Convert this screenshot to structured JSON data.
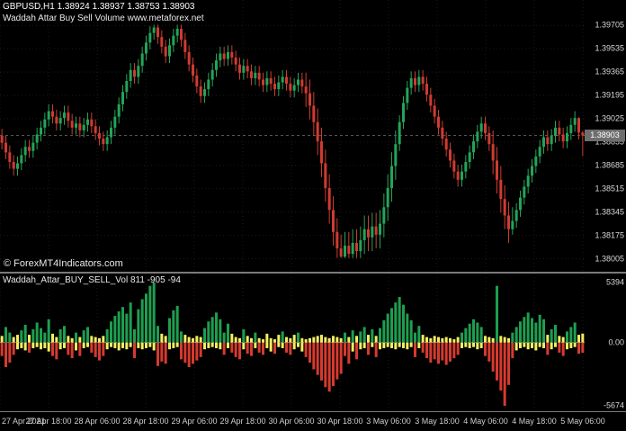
{
  "window": {
    "bg": "#000000"
  },
  "header": {
    "symbol_line": "GBPUSD,H1 1.38924 1.38937 1.38753 1.38903",
    "subtitle_line": "Waddah Attar Buy Sell Volume www.metaforex.net"
  },
  "watermark": "© ForexMT4Indicators.com",
  "indicator_panel": {
    "label": "Waddah_Attar_BUY_SELL_Vol 811 -905 -94",
    "axis_labels": [
      {
        "text": "5394",
        "value": 5394
      },
      {
        "text": "0.00",
        "value": 0
      },
      {
        "text": "-5674",
        "value": -5674
      }
    ]
  },
  "price_axis": {
    "labels": [
      "1.39705",
      "1.39535",
      "1.39365",
      "1.39195",
      "1.39025",
      "1.38855",
      "1.38685",
      "1.38515",
      "1.38345",
      "1.38175",
      "1.38005"
    ],
    "current": "1.38903"
  },
  "time_axis": {
    "labels": [
      "27 Apr 2021",
      "27 Apr 18:00",
      "28 Apr 06:00",
      "28 Apr 18:00",
      "29 Apr 06:00",
      "29 Apr 18:00",
      "30 Apr 06:00",
      "30 Apr 18:00",
      "3 May 06:00",
      "3 May 18:00",
      "4 May 06:00",
      "4 May 18:00",
      "5 May 06:00"
    ]
  },
  "colors": {
    "background": "#000000",
    "bull": "#23a459",
    "bear": "#cf3b30",
    "volume_up": "#1e9e50",
    "volume_down": "#d63a2f",
    "volume_small": "#f2ee62",
    "axis_text": "#d9d9d9",
    "grid": "rgba(255,255,255,0.10)",
    "separator": "#7a7a7a",
    "zero_line": "#a0a0a0",
    "bid_line": "#8a8a8a",
    "badge_bg": "#6e6e6e",
    "badge_text": "#ffffff"
  },
  "chart_data": {
    "type": "candlestick",
    "symbol": "GBPUSD",
    "timeframe": "H1",
    "title": "Waddah Attar Buy Sell Volume www.metaforex.net",
    "price_range": [
      1.3791,
      1.3989
    ],
    "ohlc": [
      [
        1.389,
        1.3895,
        1.388,
        1.3885
      ],
      [
        1.3885,
        1.389,
        1.3873,
        1.3878
      ],
      [
        1.3878,
        1.3883,
        1.3866,
        1.3871
      ],
      [
        1.3871,
        1.3876,
        1.3861,
        1.3866
      ],
      [
        1.3866,
        1.3875,
        1.3861,
        1.387
      ],
      [
        1.387,
        1.3881,
        1.3865,
        1.3876
      ],
      [
        1.3876,
        1.3887,
        1.3871,
        1.3882
      ],
      [
        1.3882,
        1.3887,
        1.3874,
        1.3879
      ],
      [
        1.3879,
        1.389,
        1.3874,
        1.3885
      ],
      [
        1.3885,
        1.3896,
        1.388,
        1.3891
      ],
      [
        1.3891,
        1.3901,
        1.3886,
        1.3896
      ],
      [
        1.3896,
        1.3907,
        1.3891,
        1.3902
      ],
      [
        1.3902,
        1.3913,
        1.3897,
        1.3908
      ],
      [
        1.3908,
        1.3913,
        1.3899,
        1.3904
      ],
      [
        1.3904,
        1.3909,
        1.3894,
        1.3899
      ],
      [
        1.3899,
        1.3908,
        1.3894,
        1.3903
      ],
      [
        1.3903,
        1.3912,
        1.3898,
        1.3907
      ],
      [
        1.3907,
        1.3912,
        1.3896,
        1.3901
      ],
      [
        1.3901,
        1.3906,
        1.3891,
        1.3896
      ],
      [
        1.3896,
        1.3904,
        1.3891,
        1.3899
      ],
      [
        1.3899,
        1.3904,
        1.3889,
        1.3894
      ],
      [
        1.3894,
        1.3903,
        1.3889,
        1.3898
      ],
      [
        1.3898,
        1.3907,
        1.3893,
        1.3902
      ],
      [
        1.3902,
        1.3907,
        1.3892,
        1.3897
      ],
      [
        1.3897,
        1.3902,
        1.3887,
        1.3892
      ],
      [
        1.3892,
        1.3897,
        1.3883,
        1.3888
      ],
      [
        1.3888,
        1.3893,
        1.3879,
        1.3884
      ],
      [
        1.3884,
        1.3894,
        1.3879,
        1.3889
      ],
      [
        1.3889,
        1.3901,
        1.3884,
        1.3896
      ],
      [
        1.3896,
        1.3909,
        1.3891,
        1.3904
      ],
      [
        1.3904,
        1.3918,
        1.3899,
        1.3913
      ],
      [
        1.3913,
        1.3927,
        1.3908,
        1.3922
      ],
      [
        1.3922,
        1.3935,
        1.3917,
        1.393
      ],
      [
        1.393,
        1.3943,
        1.3925,
        1.3938
      ],
      [
        1.3938,
        1.3943,
        1.3928,
        1.3933
      ],
      [
        1.3933,
        1.3946,
        1.3928,
        1.3941
      ],
      [
        1.3941,
        1.3955,
        1.3936,
        1.395
      ],
      [
        1.395,
        1.3963,
        1.3945,
        1.3958
      ],
      [
        1.3958,
        1.397,
        1.3953,
        1.3965
      ],
      [
        1.3965,
        1.3971,
        1.396,
        1.3969
      ],
      [
        1.3969,
        1.3971,
        1.3957,
        1.3962
      ],
      [
        1.3962,
        1.3967,
        1.395,
        1.3955
      ],
      [
        1.3955,
        1.396,
        1.3943,
        1.3948
      ],
      [
        1.3948,
        1.3961,
        1.3943,
        1.3956
      ],
      [
        1.3956,
        1.3968,
        1.3951,
        1.3963
      ],
      [
        1.3963,
        1.3971,
        1.3958,
        1.3968
      ],
      [
        1.3968,
        1.3971,
        1.3955,
        1.396
      ],
      [
        1.396,
        1.3965,
        1.3946,
        1.3951
      ],
      [
        1.3951,
        1.3956,
        1.3937,
        1.3942
      ],
      [
        1.3942,
        1.3947,
        1.3929,
        1.3934
      ],
      [
        1.3934,
        1.3939,
        1.3921,
        1.3926
      ],
      [
        1.3926,
        1.3931,
        1.3914,
        1.3919
      ],
      [
        1.3919,
        1.3929,
        1.3914,
        1.3924
      ],
      [
        1.3924,
        1.3936,
        1.3919,
        1.3931
      ],
      [
        1.3931,
        1.3943,
        1.3926,
        1.3938
      ],
      [
        1.3938,
        1.395,
        1.3933,
        1.3945
      ],
      [
        1.3945,
        1.3955,
        1.394,
        1.395
      ],
      [
        1.395,
        1.3955,
        1.3941,
        1.3946
      ],
      [
        1.3946,
        1.3956,
        1.3941,
        1.3951
      ],
      [
        1.3951,
        1.3956,
        1.3942,
        1.3947
      ],
      [
        1.3947,
        1.3952,
        1.3937,
        1.3942
      ],
      [
        1.3942,
        1.3947,
        1.3931,
        1.3936
      ],
      [
        1.3936,
        1.3946,
        1.3931,
        1.3941
      ],
      [
        1.3941,
        1.3946,
        1.3932,
        1.3937
      ],
      [
        1.3937,
        1.3942,
        1.3927,
        1.3932
      ],
      [
        1.3932,
        1.3941,
        1.3927,
        1.3936
      ],
      [
        1.3936,
        1.3941,
        1.3926,
        1.3931
      ],
      [
        1.3931,
        1.3936,
        1.3922,
        1.3927
      ],
      [
        1.3927,
        1.3937,
        1.3922,
        1.3932
      ],
      [
        1.3932,
        1.3937,
        1.3923,
        1.3928
      ],
      [
        1.3928,
        1.3933,
        1.3919,
        1.3924
      ],
      [
        1.3924,
        1.3934,
        1.3919,
        1.3929
      ],
      [
        1.3929,
        1.3938,
        1.3924,
        1.3933
      ],
      [
        1.3933,
        1.3938,
        1.3923,
        1.3928
      ],
      [
        1.3928,
        1.3933,
        1.3918,
        1.3923
      ],
      [
        1.3923,
        1.3932,
        1.3918,
        1.3927
      ],
      [
        1.3927,
        1.3936,
        1.3922,
        1.3931
      ],
      [
        1.3931,
        1.3936,
        1.3921,
        1.3926
      ],
      [
        1.3926,
        1.3936,
        1.3911,
        1.3921
      ],
      [
        1.3921,
        1.3931,
        1.3902,
        1.3912
      ],
      [
        1.3912,
        1.3922,
        1.389,
        1.39
      ],
      [
        1.39,
        1.391,
        1.3876,
        1.3886
      ],
      [
        1.3886,
        1.3896,
        1.386,
        1.387
      ],
      [
        1.387,
        1.388,
        1.3842,
        1.3852
      ],
      [
        1.3852,
        1.3862,
        1.3826,
        1.3836
      ],
      [
        1.3836,
        1.3846,
        1.381,
        1.382
      ],
      [
        1.382,
        1.383,
        1.3801,
        1.3808
      ],
      [
        1.3808,
        1.3818,
        1.3801,
        1.3802
      ],
      [
        1.3802,
        1.382,
        1.3801,
        1.381
      ],
      [
        1.381,
        1.382,
        1.3801,
        1.3804
      ],
      [
        1.3804,
        1.3822,
        1.3801,
        1.3812
      ],
      [
        1.3812,
        1.3822,
        1.3801,
        1.3806
      ],
      [
        1.3806,
        1.3824,
        1.3801,
        1.3814
      ],
      [
        1.3814,
        1.3832,
        1.3804,
        1.3822
      ],
      [
        1.3822,
        1.3832,
        1.3806,
        1.3816
      ],
      [
        1.3816,
        1.3834,
        1.3806,
        1.3824
      ],
      [
        1.3824,
        1.3834,
        1.3808,
        1.3818
      ],
      [
        1.3818,
        1.3836,
        1.3808,
        1.3826
      ],
      [
        1.3826,
        1.3848,
        1.3816,
        1.3838
      ],
      [
        1.3838,
        1.3862,
        1.3828,
        1.3852
      ],
      [
        1.3852,
        1.3878,
        1.3842,
        1.3868
      ],
      [
        1.3868,
        1.3894,
        1.3858,
        1.3884
      ],
      [
        1.3884,
        1.3905,
        1.3879,
        1.39
      ],
      [
        1.39,
        1.3919,
        1.3895,
        1.3914
      ],
      [
        1.3914,
        1.393,
        1.3909,
        1.3925
      ],
      [
        1.3925,
        1.3937,
        1.392,
        1.3932
      ],
      [
        1.3932,
        1.3937,
        1.3922,
        1.3927
      ],
      [
        1.3927,
        1.3938,
        1.3922,
        1.3933
      ],
      [
        1.3933,
        1.3938,
        1.3923,
        1.3928
      ],
      [
        1.3928,
        1.3933,
        1.3915,
        1.392
      ],
      [
        1.392,
        1.3925,
        1.3907,
        1.3912
      ],
      [
        1.3912,
        1.3917,
        1.3899,
        1.3904
      ],
      [
        1.3904,
        1.3909,
        1.3891,
        1.3896
      ],
      [
        1.3896,
        1.3901,
        1.3883,
        1.3888
      ],
      [
        1.3888,
        1.3893,
        1.3875,
        1.388
      ],
      [
        1.388,
        1.3885,
        1.3867,
        1.3872
      ],
      [
        1.3872,
        1.3877,
        1.3859,
        1.3864
      ],
      [
        1.3864,
        1.3869,
        1.3853,
        1.3858
      ],
      [
        1.3858,
        1.3869,
        1.3853,
        1.3864
      ],
      [
        1.3864,
        1.3876,
        1.3859,
        1.3871
      ],
      [
        1.3871,
        1.3883,
        1.3866,
        1.3878
      ],
      [
        1.3878,
        1.3891,
        1.3873,
        1.3886
      ],
      [
        1.3886,
        1.3898,
        1.3881,
        1.3893
      ],
      [
        1.3893,
        1.3904,
        1.3888,
        1.3899
      ],
      [
        1.3899,
        1.3904,
        1.3887,
        1.3892
      ],
      [
        1.3892,
        1.3897,
        1.3879,
        1.3884
      ],
      [
        1.3884,
        1.3894,
        1.3862,
        1.3872
      ],
      [
        1.3872,
        1.3882,
        1.3848,
        1.3858
      ],
      [
        1.3858,
        1.3868,
        1.3834,
        1.3844
      ],
      [
        1.3844,
        1.3854,
        1.3822,
        1.3832
      ],
      [
        1.3832,
        1.3842,
        1.3812,
        1.3822
      ],
      [
        1.3822,
        1.3838,
        1.3818,
        1.3828
      ],
      [
        1.3828,
        1.3841,
        1.3823,
        1.3836
      ],
      [
        1.3836,
        1.385,
        1.3831,
        1.3845
      ],
      [
        1.3845,
        1.3858,
        1.384,
        1.3853
      ],
      [
        1.3853,
        1.3866,
        1.3848,
        1.3861
      ],
      [
        1.3861,
        1.3873,
        1.3856,
        1.3868
      ],
      [
        1.3868,
        1.388,
        1.3863,
        1.3875
      ],
      [
        1.3875,
        1.3887,
        1.387,
        1.3882
      ],
      [
        1.3882,
        1.3894,
        1.3877,
        1.3889
      ],
      [
        1.3889,
        1.3894,
        1.3879,
        1.3884
      ],
      [
        1.3884,
        1.3895,
        1.3879,
        1.389
      ],
      [
        1.389,
        1.3901,
        1.3885,
        1.3896
      ],
      [
        1.3896,
        1.3901,
        1.3886,
        1.3891
      ],
      [
        1.3891,
        1.3896,
        1.3881,
        1.3886
      ],
      [
        1.3886,
        1.3897,
        1.3881,
        1.3892
      ],
      [
        1.3892,
        1.3903,
        1.3887,
        1.3898
      ],
      [
        1.3898,
        1.3908,
        1.3893,
        1.3903
      ],
      [
        1.3903,
        1.39035,
        1.38874,
        1.38924
      ],
      [
        1.38924,
        1.38937,
        1.38753,
        1.38903
      ]
    ],
    "indicator": {
      "type": "bar",
      "name": "Waddah_Attar_BUY_SELL_Vol",
      "current_values": [
        811,
        -905,
        -94
      ],
      "value_range": [
        -5674,
        5394
      ],
      "yellow_threshold": 900,
      "buy_volume": [
        600,
        1400,
        900,
        500,
        700,
        1100,
        1600,
        700,
        1200,
        1800,
        1300,
        900,
        2100,
        800,
        500,
        1200,
        1500,
        600,
        400,
        900,
        500,
        1100,
        1400,
        600,
        500,
        400,
        600,
        1200,
        1900,
        2400,
        2800,
        3200,
        2600,
        3600,
        1200,
        3000,
        3900,
        4400,
        5100,
        5394,
        1500,
        800,
        600,
        2200,
        2900,
        3300,
        1000,
        700,
        500,
        400,
        600,
        500,
        1300,
        1900,
        2300,
        2700,
        2100,
        900,
        1700,
        800,
        500,
        400,
        1200,
        600,
        400,
        900,
        400,
        300,
        800,
        400,
        300,
        700,
        1000,
        500,
        400,
        700,
        900,
        400,
        300,
        400,
        500,
        600,
        700,
        500,
        400,
        600,
        500,
        400,
        900,
        500,
        1100,
        600,
        1000,
        1400,
        700,
        1200,
        600,
        1300,
        2000,
        2600,
        3100,
        3600,
        4100,
        3400,
        2600,
        2000,
        900,
        1500,
        700,
        500,
        400,
        600,
        500,
        400,
        500,
        400,
        300,
        500,
        900,
        1300,
        1700,
        2100,
        1800,
        1400,
        600,
        500,
        400,
        5100,
        600,
        500,
        400,
        900,
        1400,
        1900,
        2300,
        2700,
        2200,
        1800,
        2500,
        2100,
        700,
        1200,
        1600,
        600,
        500,
        1000,
        1400,
        1800,
        700,
        811
      ],
      "sell_volume": [
        1200,
        2200,
        1800,
        1100,
        600,
        500,
        700,
        900,
        500,
        400,
        600,
        500,
        800,
        1200,
        1500,
        600,
        500,
        1100,
        1400,
        700,
        1200,
        500,
        400,
        900,
        1300,
        1600,
        1200,
        600,
        400,
        500,
        700,
        500,
        600,
        400,
        1400,
        500,
        600,
        500,
        400,
        700,
        2100,
        1700,
        1900,
        600,
        500,
        400,
        1500,
        1800,
        2200,
        1900,
        1600,
        1300,
        600,
        500,
        400,
        500,
        600,
        1100,
        500,
        900,
        1300,
        1500,
        600,
        1000,
        1200,
        500,
        900,
        1100,
        500,
        800,
        1000,
        400,
        500,
        900,
        1100,
        600,
        400,
        800,
        1300,
        1800,
        2400,
        2900,
        3400,
        4000,
        4400,
        3900,
        3300,
        2800,
        1200,
        1900,
        800,
        1500,
        600,
        500,
        1100,
        400,
        1300,
        600,
        500,
        400,
        500,
        600,
        400,
        500,
        600,
        400,
        1300,
        500,
        900,
        1400,
        1800,
        1500,
        1900,
        1600,
        2000,
        1700,
        1400,
        1100,
        500,
        400,
        500,
        400,
        600,
        500,
        1200,
        1700,
        2600,
        3400,
        4300,
        5674,
        3800,
        1400,
        700,
        500,
        400,
        600,
        500,
        700,
        400,
        500,
        1100,
        600,
        400,
        900,
        1200,
        600,
        500,
        400,
        1000,
        905
      ]
    }
  }
}
